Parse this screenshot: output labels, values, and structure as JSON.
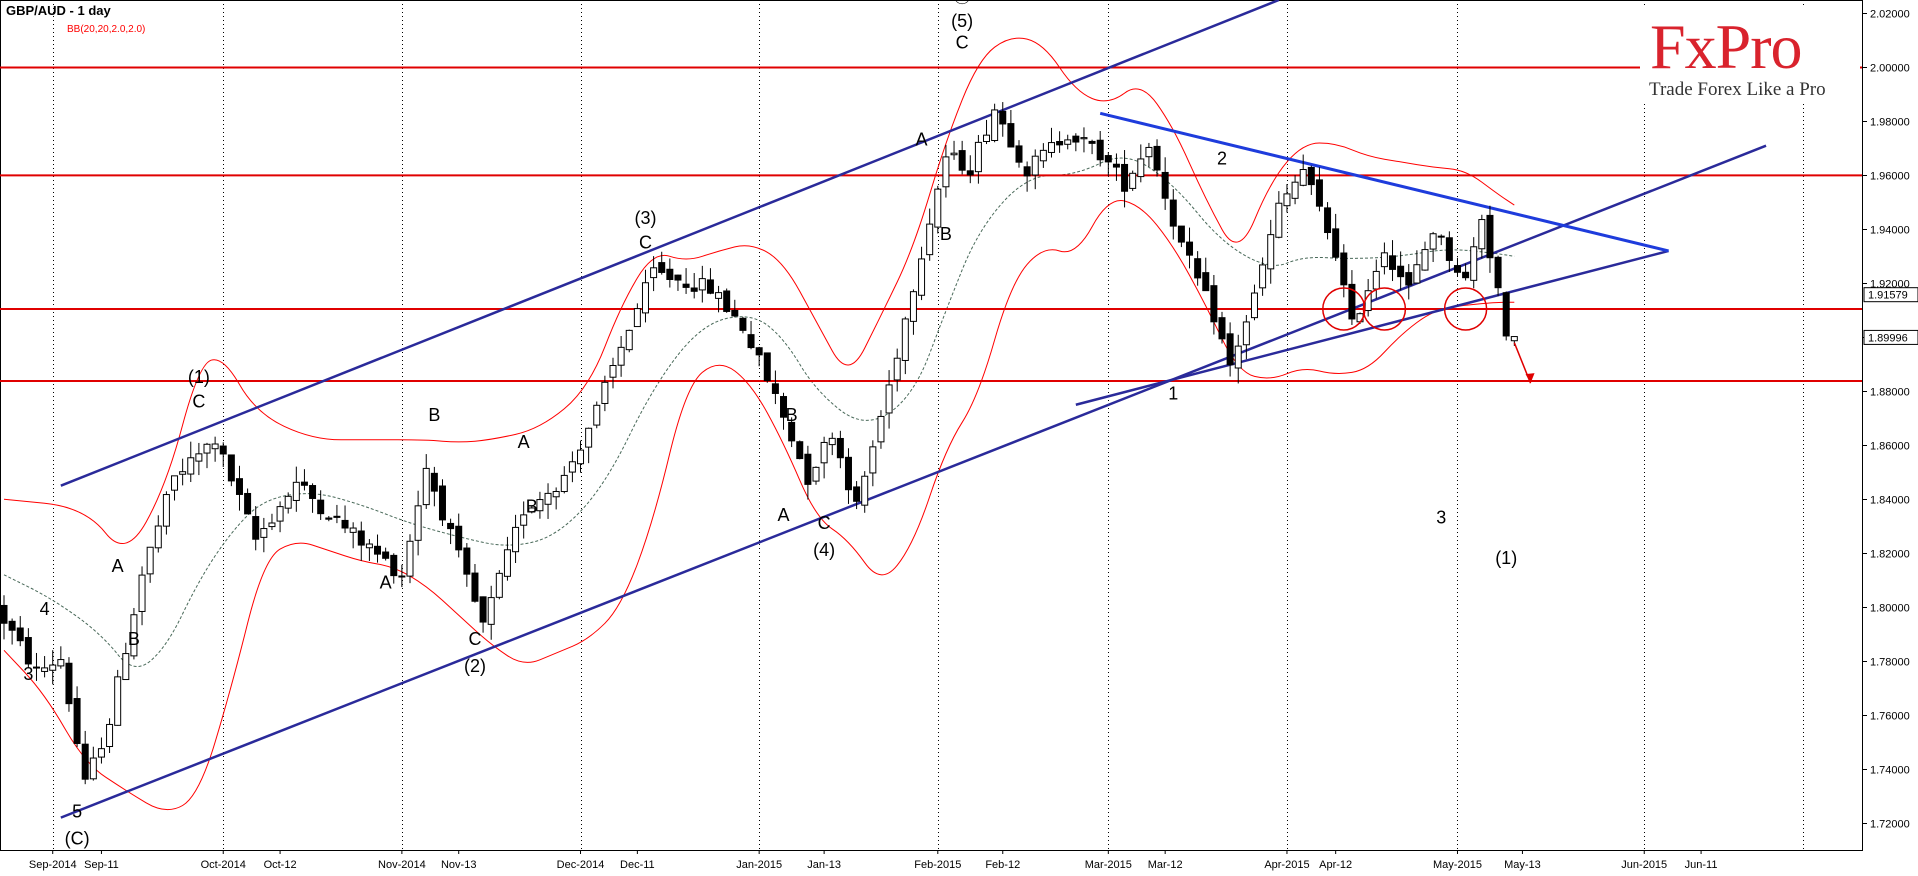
{
  "header": {
    "symbol_label": "GBP/AUD - 1 day",
    "indicator_label": "BB(20,20,2.0,2.0)"
  },
  "logo": {
    "brand": "FxPro",
    "tagline": "Trade Forex Like a Pro",
    "brand_color": "#d9232d"
  },
  "colors": {
    "background": "#ffffff",
    "grid": "#000000",
    "levels": "#e00000",
    "channel": "#2a2a9a",
    "triangle": "#1e3cdc",
    "bands": "#ff0000",
    "middle_band": "#4a6a5a",
    "candle_up": "#ffffff",
    "candle_down": "#000000"
  },
  "chart_data": {
    "type": "candlestick",
    "title": "GBP/AUD - 1 day",
    "indicator": "BB(20,20,2.0,2.0)",
    "ylim": [
      1.71,
      2.025
    ],
    "y_ticks": [
      "1.72000",
      "1.74000",
      "1.76000",
      "1.78000",
      "1.80000",
      "1.82000",
      "1.84000",
      "1.86000",
      "1.88000",
      "1.90000",
      "1.92000",
      "1.94000",
      "1.96000",
      "1.98000",
      "2.00000",
      "2.02000"
    ],
    "x_labels": [
      {
        "label": "Sep-2014",
        "bar": 6
      },
      {
        "label": "Sep-11",
        "bar": 12
      },
      {
        "label": "Oct-2014",
        "bar": 27
      },
      {
        "label": "Oct-12",
        "bar": 34
      },
      {
        "label": "Nov-2014",
        "bar": 49
      },
      {
        "label": "Nov-13",
        "bar": 56
      },
      {
        "label": "Dec-2014",
        "bar": 71
      },
      {
        "label": "Dec-11",
        "bar": 78
      },
      {
        "label": "Jan-2015",
        "bar": 93
      },
      {
        "label": "Jan-13",
        "bar": 101
      },
      {
        "label": "Feb-2015",
        "bar": 115
      },
      {
        "label": "Feb-12",
        "bar": 123
      },
      {
        "label": "Mar-2015",
        "bar": 136
      },
      {
        "label": "Mar-12",
        "bar": 143
      },
      {
        "label": "Apr-2015",
        "bar": 158
      },
      {
        "label": "Apr-12",
        "bar": 164
      },
      {
        "label": "May-2015",
        "bar": 179
      },
      {
        "label": "May-13",
        "bar": 187
      },
      {
        "label": "Jun-2015",
        "bar": 202
      },
      {
        "label": "Jun-11",
        "bar": 209
      }
    ],
    "price_labels": [
      "1.91579",
      "1.89996"
    ],
    "horizontal_levels": [
      2.0,
      1.96,
      1.9105,
      1.8838
    ],
    "waypoints": [
      [
        0,
        1.8
      ],
      [
        5,
        1.776
      ],
      [
        8,
        1.781
      ],
      [
        11,
        1.734
      ],
      [
        14,
        1.758
      ],
      [
        18,
        1.812
      ],
      [
        22,
        1.848
      ],
      [
        27,
        1.862
      ],
      [
        32,
        1.825
      ],
      [
        37,
        1.846
      ],
      [
        42,
        1.832
      ],
      [
        50,
        1.812
      ],
      [
        53,
        1.852
      ],
      [
        60,
        1.793
      ],
      [
        65,
        1.836
      ],
      [
        70,
        1.848
      ],
      [
        74,
        1.873
      ],
      [
        78,
        1.904
      ],
      [
        81,
        1.924
      ],
      [
        88,
        1.918
      ],
      [
        92,
        1.904
      ],
      [
        96,
        1.878
      ],
      [
        100,
        1.848
      ],
      [
        103,
        1.865
      ],
      [
        106,
        1.837
      ],
      [
        110,
        1.882
      ],
      [
        114,
        1.932
      ],
      [
        117,
        1.967
      ],
      [
        120,
        1.963
      ],
      [
        123,
        1.985
      ],
      [
        127,
        1.962
      ],
      [
        132,
        1.976
      ],
      [
        136,
        1.968
      ],
      [
        139,
        1.957
      ],
      [
        142,
        1.972
      ],
      [
        146,
        1.934
      ],
      [
        150,
        1.908
      ],
      [
        152,
        1.889
      ],
      [
        155,
        1.915
      ],
      [
        158,
        1.948
      ],
      [
        161,
        1.962
      ],
      [
        165,
        1.932
      ],
      [
        167,
        1.904
      ],
      [
        171,
        1.933
      ],
      [
        174,
        1.918
      ],
      [
        177,
        1.94
      ],
      [
        181,
        1.921
      ],
      [
        183,
        1.945
      ],
      [
        185,
        1.918
      ],
      [
        186,
        1.898
      ]
    ],
    "upper_band_points": [
      [
        0,
        1.84
      ],
      [
        10,
        1.837
      ],
      [
        15,
        1.818
      ],
      [
        20,
        1.845
      ],
      [
        24,
        1.89
      ],
      [
        27,
        1.893
      ],
      [
        31,
        1.872
      ],
      [
        38,
        1.862
      ],
      [
        45,
        1.862
      ],
      [
        52,
        1.862
      ],
      [
        56,
        1.861
      ],
      [
        60,
        1.862
      ],
      [
        66,
        1.866
      ],
      [
        72,
        1.881
      ],
      [
        76,
        1.912
      ],
      [
        80,
        1.932
      ],
      [
        84,
        1.928
      ],
      [
        88,
        1.932
      ],
      [
        92,
        1.935
      ],
      [
        96,
        1.928
      ],
      [
        100,
        1.906
      ],
      [
        104,
        1.884
      ],
      [
        108,
        1.908
      ],
      [
        112,
        1.933
      ],
      [
        116,
        1.973
      ],
      [
        120,
        2.003
      ],
      [
        124,
        2.012
      ],
      [
        128,
        2.009
      ],
      [
        132,
        1.991
      ],
      [
        136,
        1.986
      ],
      [
        140,
        1.995
      ],
      [
        144,
        1.978
      ],
      [
        148,
        1.951
      ],
      [
        152,
        1.929
      ],
      [
        156,
        1.958
      ],
      [
        160,
        1.972
      ],
      [
        164,
        1.972
      ],
      [
        168,
        1.967
      ],
      [
        172,
        1.965
      ],
      [
        176,
        1.963
      ],
      [
        180,
        1.962
      ],
      [
        184,
        1.953
      ],
      [
        186,
        1.949
      ]
    ],
    "lower_band_points": [
      [
        0,
        1.784
      ],
      [
        5,
        1.768
      ],
      [
        10,
        1.742
      ],
      [
        15,
        1.732
      ],
      [
        20,
        1.723
      ],
      [
        24,
        1.73
      ],
      [
        28,
        1.77
      ],
      [
        32,
        1.818
      ],
      [
        36,
        1.825
      ],
      [
        40,
        1.821
      ],
      [
        44,
        1.817
      ],
      [
        48,
        1.815
      ],
      [
        52,
        1.808
      ],
      [
        56,
        1.797
      ],
      [
        60,
        1.786
      ],
      [
        64,
        1.778
      ],
      [
        68,
        1.783
      ],
      [
        72,
        1.788
      ],
      [
        76,
        1.8
      ],
      [
        80,
        1.832
      ],
      [
        84,
        1.882
      ],
      [
        88,
        1.892
      ],
      [
        92,
        1.883
      ],
      [
        96,
        1.861
      ],
      [
        100,
        1.833
      ],
      [
        104,
        1.825
      ],
      [
        108,
        1.808
      ],
      [
        112,
        1.823
      ],
      [
        116,
        1.859
      ],
      [
        120,
        1.878
      ],
      [
        124,
        1.92
      ],
      [
        128,
        1.934
      ],
      [
        132,
        1.93
      ],
      [
        136,
        1.952
      ],
      [
        140,
        1.949
      ],
      [
        144,
        1.934
      ],
      [
        148,
        1.912
      ],
      [
        152,
        1.887
      ],
      [
        156,
        1.884
      ],
      [
        160,
        1.889
      ],
      [
        164,
        1.886
      ],
      [
        168,
        1.888
      ],
      [
        172,
        1.901
      ],
      [
        176,
        1.91
      ],
      [
        180,
        1.912
      ],
      [
        184,
        1.913
      ],
      [
        186,
        1.913
      ]
    ],
    "middle_band_points": [
      [
        0,
        1.812
      ],
      [
        6,
        1.803
      ],
      [
        12,
        1.79
      ],
      [
        16,
        1.775
      ],
      [
        20,
        1.785
      ],
      [
        24,
        1.81
      ],
      [
        28,
        1.828
      ],
      [
        32,
        1.84
      ],
      [
        38,
        1.843
      ],
      [
        44,
        1.838
      ],
      [
        50,
        1.831
      ],
      [
        56,
        1.826
      ],
      [
        62,
        1.822
      ],
      [
        68,
        1.826
      ],
      [
        74,
        1.845
      ],
      [
        80,
        1.882
      ],
      [
        86,
        1.905
      ],
      [
        92,
        1.909
      ],
      [
        96,
        1.9
      ],
      [
        100,
        1.88
      ],
      [
        106,
        1.866
      ],
      [
        112,
        1.878
      ],
      [
        116,
        1.91
      ],
      [
        120,
        1.94
      ],
      [
        126,
        1.96
      ],
      [
        132,
        1.96
      ],
      [
        138,
        1.969
      ],
      [
        144,
        1.957
      ],
      [
        150,
        1.935
      ],
      [
        156,
        1.925
      ],
      [
        160,
        1.93
      ],
      [
        166,
        1.929
      ],
      [
        172,
        1.93
      ],
      [
        178,
        1.933
      ],
      [
        184,
        1.931
      ],
      [
        186,
        1.93
      ]
    ],
    "channel_lines": [
      {
        "from": [
          7,
          1.845
        ],
        "to": [
          157,
          2.025
        ]
      },
      {
        "from": [
          7,
          1.722
        ],
        "to": [
          217,
          1.971
        ]
      },
      {
        "from": [
          132,
          1.875
        ],
        "to": [
          205,
          1.932
        ]
      }
    ],
    "triangle_upper": {
      "from": [
        135,
        1.983
      ],
      "to": [
        205,
        1.932
      ]
    },
    "circles": [
      [
        165,
        1.9105
      ],
      [
        170,
        1.9105
      ],
      [
        180,
        1.9105
      ]
    ],
    "arrow": {
      "from": [
        186,
        1.898
      ],
      "to": [
        188,
        1.883
      ]
    },
    "wave_labels": [
      {
        "text": "4",
        "bar": 5,
        "y": 1.797
      },
      {
        "text": "3",
        "bar": 3,
        "y": 1.773
      },
      {
        "text": "5",
        "bar": 9,
        "y": 1.722
      },
      {
        "text": "(C)",
        "bar": 9,
        "y": 1.712
      },
      {
        "text": "A",
        "bar": 14,
        "y": 1.813
      },
      {
        "text": "B",
        "bar": 16,
        "y": 1.786
      },
      {
        "text": "(1)",
        "bar": 24,
        "y": 1.883
      },
      {
        "text": "C",
        "bar": 24,
        "y": 1.874
      },
      {
        "text": "B",
        "bar": 53,
        "y": 1.869
      },
      {
        "text": "A",
        "bar": 47,
        "y": 1.807
      },
      {
        "text": "C",
        "bar": 58,
        "y": 1.786
      },
      {
        "text": "(2)",
        "bar": 58,
        "y": 1.776
      },
      {
        "text": "A",
        "bar": 64,
        "y": 1.859
      },
      {
        "text": "B",
        "bar": 65,
        "y": 1.835
      },
      {
        "text": "(3)",
        "bar": 79,
        "y": 1.942
      },
      {
        "text": "C",
        "bar": 79,
        "y": 1.933
      },
      {
        "text": "B",
        "bar": 97,
        "y": 1.869
      },
      {
        "text": "A",
        "bar": 96,
        "y": 1.832
      },
      {
        "text": "C",
        "bar": 101,
        "y": 1.829
      },
      {
        "text": "(4)",
        "bar": 101,
        "y": 1.819
      },
      {
        "text": "A",
        "bar": 113,
        "y": 1.971
      },
      {
        "text": "B",
        "bar": 116,
        "y": 1.936
      },
      {
        "text": "Ⓒ",
        "bar": 118,
        "y": 2.024
      },
      {
        "text": "(5)",
        "bar": 118,
        "y": 2.015
      },
      {
        "text": "C",
        "bar": 118,
        "y": 2.007
      },
      {
        "text": "2",
        "bar": 150,
        "y": 1.964
      },
      {
        "text": "1",
        "bar": 144,
        "y": 1.877
      },
      {
        "text": "3",
        "bar": 177,
        "y": 1.831
      },
      {
        "text": "(1)",
        "bar": 185,
        "y": 1.816
      }
    ]
  }
}
